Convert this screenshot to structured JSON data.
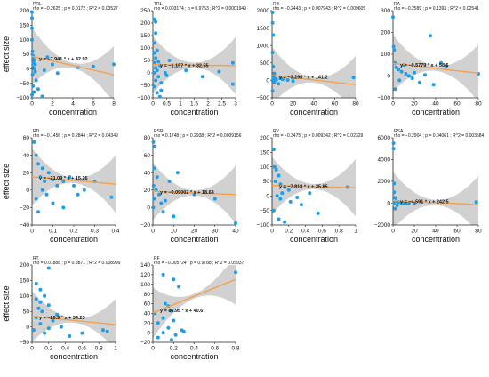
{
  "chart_data": [
    {
      "type": "scatter",
      "title": "PRL",
      "subtitle": "rho = −0.2625 ; p = 0.0172 ; R^2 = 0.03527",
      "xlabel": "concentration",
      "ylabel": "effect size",
      "xlim": [
        0,
        8
      ],
      "ylim": [
        -100,
        200
      ],
      "xticks": [
        "0",
        "2",
        "4",
        "6",
        "8"
      ],
      "yticks": [
        "−100",
        "−50",
        "0",
        "50",
        "100",
        "150",
        "200"
      ],
      "fit": {
        "slope": -7.941,
        "intercept": 42.92,
        "label": "y = −7.941 * x + 42.92"
      },
      "points": [
        [
          0,
          195
        ],
        [
          0,
          175
        ],
        [
          0,
          140
        ],
        [
          0,
          100
        ],
        [
          0.05,
          60
        ],
        [
          0.1,
          45
        ],
        [
          0.1,
          35
        ],
        [
          0.2,
          30
        ],
        [
          0.15,
          20
        ],
        [
          0.3,
          15
        ],
        [
          0.1,
          5
        ],
        [
          0.2,
          0
        ],
        [
          0.3,
          -10
        ],
        [
          0.05,
          -20
        ],
        [
          0.4,
          -40
        ],
        [
          0.1,
          -60
        ],
        [
          0.2,
          -80
        ],
        [
          1.5,
          40
        ],
        [
          2,
          15
        ],
        [
          1.2,
          -5
        ],
        [
          0.6,
          -70
        ],
        [
          0,
          -90
        ],
        [
          1,
          -95
        ],
        [
          6,
          8
        ],
        [
          8,
          15
        ],
        [
          4.5,
          5
        ],
        [
          2.5,
          -15
        ]
      ]
    },
    {
      "type": "scatter",
      "title": "TRL",
      "subtitle": "rho = 0.003174 ; p = 0.9753 ; R^2 = 0.0001949",
      "xlabel": "concentration",
      "ylabel": "",
      "xlim": [
        0,
        3
      ],
      "ylim": [
        -100,
        250
      ],
      "xticks": [
        "0",
        "0.5",
        "1",
        "1.5",
        "2",
        "2.5",
        "3"
      ],
      "yticks": [
        "−100",
        "−50",
        "0",
        "50",
        "100",
        "150",
        "200",
        "250"
      ],
      "fit": {
        "slope": -1.157,
        "intercept": 32.55,
        "label": "y = −1.157 * x + 32.55"
      },
      "points": [
        [
          0.05,
          215
        ],
        [
          0.1,
          205
        ],
        [
          0.1,
          160
        ],
        [
          0.05,
          120
        ],
        [
          0.15,
          90
        ],
        [
          0.05,
          80
        ],
        [
          0.1,
          60
        ],
        [
          0.2,
          45
        ],
        [
          0.05,
          40
        ],
        [
          0.25,
          30
        ],
        [
          0.1,
          20
        ],
        [
          0.15,
          10
        ],
        [
          0.05,
          0
        ],
        [
          0.2,
          -15
        ],
        [
          0.1,
          -30
        ],
        [
          0.3,
          -40
        ],
        [
          0.05,
          -55
        ],
        [
          0.15,
          -80
        ],
        [
          0.25,
          -95
        ],
        [
          0.6,
          50
        ],
        [
          0.45,
          0
        ],
        [
          0.5,
          -10
        ],
        [
          1.2,
          10
        ],
        [
          1.8,
          -15
        ],
        [
          2.4,
          5
        ],
        [
          2.9,
          40
        ],
        [
          2.9,
          -45
        ],
        [
          0.3,
          -70
        ]
      ]
    },
    {
      "type": "scatter",
      "title": "RB",
      "subtitle": "rho = −0.2443 ; p = 0.007943 ; R^2 = 0.009605",
      "xlabel": "concentration",
      "ylabel": "",
      "xlim": [
        0,
        80
      ],
      "ylim": [
        -500,
        2000
      ],
      "xticks": [
        "0",
        "20",
        "40",
        "60",
        "80"
      ],
      "yticks": [
        "−500",
        "0",
        "500",
        "1000",
        "1500",
        "2000"
      ],
      "fit": {
        "slope": -3.296,
        "intercept": 141.2,
        "label": "y = −3.296 * x + 141.2"
      },
      "points": [
        [
          0.5,
          1950
        ],
        [
          0.5,
          1650
        ],
        [
          1,
          1300
        ],
        [
          0.5,
          800
        ],
        [
          1,
          400
        ],
        [
          2,
          200
        ],
        [
          1,
          100
        ],
        [
          3,
          50
        ],
        [
          0.5,
          0
        ],
        [
          4,
          20
        ],
        [
          2,
          -50
        ],
        [
          6,
          -100
        ],
        [
          10,
          30
        ],
        [
          15,
          10
        ],
        [
          20,
          -20
        ],
        [
          8,
          60
        ],
        [
          0.5,
          -300
        ],
        [
          78,
          80
        ]
      ]
    },
    {
      "type": "scatter",
      "title": "RA",
      "subtitle": "rho = −0.2589 ; p = 0.1393 ; R^2 = 0.02541",
      "xlabel": "concentration",
      "ylabel": "",
      "xlim": [
        0,
        80
      ],
      "ylim": [
        -100,
        300
      ],
      "xticks": [
        "0",
        "20",
        "40",
        "60",
        "80"
      ],
      "yticks": [
        "−100",
        "0",
        "100",
        "200",
        "300"
      ],
      "fit": {
        "slope": -0.5779,
        "intercept": 58.6,
        "label": "y = −0.5779 * x + 58.6"
      },
      "points": [
        [
          0,
          270
        ],
        [
          0.5,
          135
        ],
        [
          1,
          120
        ],
        [
          2,
          60
        ],
        [
          3,
          40
        ],
        [
          5,
          30
        ],
        [
          8,
          20
        ],
        [
          10,
          50
        ],
        [
          12,
          10
        ],
        [
          15,
          0
        ],
        [
          18,
          -10
        ],
        [
          20,
          15
        ],
        [
          25,
          -30
        ],
        [
          30,
          5
        ],
        [
          35,
          185
        ],
        [
          38,
          -40
        ],
        [
          45,
          60
        ],
        [
          50,
          45
        ],
        [
          6,
          -20
        ],
        [
          2,
          -60
        ],
        [
          80,
          10
        ]
      ]
    },
    {
      "type": "scatter",
      "title": "RD",
      "subtitle": "rho = −0.1456 ; p = 0.2844 ; R^2 = 0.04349",
      "xlabel": "concentration",
      "ylabel": "effect size",
      "xlim": [
        0,
        0.4
      ],
      "ylim": [
        -40,
        60
      ],
      "xticks": [
        "0",
        "0.1",
        "0.2",
        "0.3",
        "0.4"
      ],
      "yticks": [
        "−40",
        "−20",
        "0",
        "20",
        "40",
        "60"
      ],
      "fit": {
        "slope": -21.09,
        "intercept": 15.26,
        "label": "y = −21.09 * x + 15.26"
      },
      "points": [
        [
          0.01,
          55
        ],
        [
          0.02,
          40
        ],
        [
          0.03,
          30
        ],
        [
          0.05,
          25
        ],
        [
          0.04,
          15
        ],
        [
          0.06,
          10
        ],
        [
          0.08,
          20
        ],
        [
          0.1,
          12
        ],
        [
          0.12,
          5
        ],
        [
          0.05,
          0
        ],
        [
          0.07,
          -5
        ],
        [
          0.15,
          10
        ],
        [
          0.18,
          15
        ],
        [
          0.2,
          5
        ],
        [
          0.22,
          -5
        ],
        [
          0.02,
          -10
        ],
        [
          0.1,
          -15
        ],
        [
          0.25,
          0
        ],
        [
          0.3,
          10
        ],
        [
          0.38,
          -8
        ],
        [
          0.03,
          -25
        ],
        [
          0.15,
          -20
        ]
      ]
    },
    {
      "type": "scatter",
      "title": "RSR",
      "subtitle": "rho = 0.1748 ; p = 0.2938 ; R^2 = 0.0009156",
      "xlabel": "concentration",
      "ylabel": "",
      "xlim": [
        0,
        40
      ],
      "ylim": [
        -20,
        80
      ],
      "xticks": [
        "0",
        "10",
        "20",
        "30",
        "40"
      ],
      "yticks": [
        "−20",
        "0",
        "20",
        "40",
        "60",
        "80"
      ],
      "fit": {
        "slope": -0.09002,
        "intercept": 18.63,
        "label": "y = −0.09002 * x + 18.63"
      },
      "points": [
        [
          0.2,
          75
        ],
        [
          1,
          70
        ],
        [
          0.5,
          45
        ],
        [
          2,
          35
        ],
        [
          0.3,
          25
        ],
        [
          1.5,
          20
        ],
        [
          3,
          15
        ],
        [
          0.5,
          10
        ],
        [
          4,
          5
        ],
        [
          6,
          8
        ],
        [
          8,
          30
        ],
        [
          12,
          40
        ],
        [
          0.2,
          0
        ],
        [
          5,
          -5
        ],
        [
          10,
          -10
        ],
        [
          40,
          -18
        ],
        [
          20,
          15
        ],
        [
          30,
          10
        ]
      ]
    },
    {
      "type": "scatter",
      "title": "RV",
      "subtitle": "rho = −0.3475 ; p = 0.009342 ; R^2 = 0.02329",
      "xlabel": "concentration",
      "ylabel": "",
      "xlim": [
        0,
        1
      ],
      "ylim": [
        -100,
        200
      ],
      "xticks": [
        "0",
        "0.2",
        "0.4",
        "0.6",
        "0.8",
        "1"
      ],
      "yticks": [
        "−100",
        "−50",
        "0",
        "50",
        "100",
        "150",
        "200"
      ],
      "fit": {
        "slope": -7.818,
        "intercept": 35.85,
        "label": "y = −7.818 * x + 35.85"
      },
      "points": [
        [
          0.02,
          160
        ],
        [
          0.03,
          100
        ],
        [
          0.05,
          90
        ],
        [
          0.08,
          70
        ],
        [
          0.04,
          50
        ],
        [
          0.1,
          40
        ],
        [
          0.15,
          30
        ],
        [
          0.2,
          20
        ],
        [
          0.12,
          10
        ],
        [
          0.06,
          0
        ],
        [
          0.1,
          -10
        ],
        [
          0.22,
          -20
        ],
        [
          0.3,
          -5
        ],
        [
          0.35,
          -30
        ],
        [
          0.02,
          -50
        ],
        [
          0.08,
          -80
        ],
        [
          0.15,
          -90
        ],
        [
          0.45,
          10
        ],
        [
          0.55,
          -60
        ],
        [
          0.9,
          30
        ]
      ]
    },
    {
      "type": "scatter",
      "title": "RSA",
      "subtitle": "rho = −0.2904 ; p = 0.04061 ; R^2 = 0.003584",
      "xlabel": "concentration",
      "ylabel": "",
      "xlim": [
        0,
        80
      ],
      "ylim": [
        -2000,
        6000
      ],
      "xticks": [
        "0",
        "20",
        "40",
        "60",
        "80"
      ],
      "yticks": [
        "−2000",
        "0",
        "2000",
        "4000",
        "6000"
      ],
      "fit": {
        "slope": -4.591,
        "intercept": 242.5,
        "label": "y = −4.591 * x + 242.5"
      },
      "points": [
        [
          0.5,
          5500
        ],
        [
          0.5,
          5000
        ],
        [
          1,
          1800
        ],
        [
          1,
          1000
        ],
        [
          2,
          500
        ],
        [
          3,
          200
        ],
        [
          5,
          100
        ],
        [
          8,
          50
        ],
        [
          1,
          0
        ],
        [
          4,
          -200
        ],
        [
          10,
          30
        ],
        [
          12,
          -50
        ],
        [
          15,
          20
        ],
        [
          20,
          10
        ],
        [
          78,
          100
        ],
        [
          2,
          -500
        ]
      ]
    },
    {
      "type": "scatter",
      "title": "RT",
      "subtitle": "rho = 0.01888 ; p = 0.8871 ; R^2 = 0.008999",
      "xlabel": "concentration",
      "ylabel": "effect size",
      "xlim": [
        0,
        1
      ],
      "ylim": [
        -50,
        200
      ],
      "xticks": [
        "0",
        "0.2",
        "0.4",
        "0.6",
        "0.8",
        "1"
      ],
      "yticks": [
        "−50",
        "0",
        "50",
        "100",
        "150",
        "200"
      ],
      "fit": {
        "slope": -26.9,
        "intercept": 34.23,
        "label": "y = −26.9 * x + 34.23"
      },
      "points": [
        [
          0.2,
          190
        ],
        [
          0.05,
          140
        ],
        [
          0.1,
          120
        ],
        [
          0.15,
          100
        ],
        [
          0.05,
          90
        ],
        [
          0.1,
          80
        ],
        [
          0.2,
          70
        ],
        [
          0.08,
          60
        ],
        [
          0.12,
          50
        ],
        [
          0.3,
          40
        ],
        [
          0.05,
          30
        ],
        [
          0.25,
          20
        ],
        [
          0.1,
          10
        ],
        [
          0.35,
          0
        ],
        [
          0.02,
          -10
        ],
        [
          0.15,
          -20
        ],
        [
          0.45,
          -30
        ],
        [
          0.6,
          -20
        ],
        [
          0.85,
          -10
        ],
        [
          0.9,
          -15
        ],
        [
          0.2,
          -5
        ]
      ]
    },
    {
      "type": "scatter",
      "title": "RF",
      "subtitle": "rho = −0.005724 ; p = 0.9788 ; R^2 = 0.05937",
      "xlabel": "concentration",
      "ylabel": "",
      "xlim": [
        0,
        0.8
      ],
      "ylim": [
        -20,
        140
      ],
      "xticks": [
        "0",
        "0.2",
        "0.4",
        "0.6",
        "0.8"
      ],
      "yticks": [
        "−20",
        "0",
        "20",
        "40",
        "60",
        "80",
        "100",
        "120",
        "140"
      ],
      "fit": {
        "slope": 86.95,
        "intercept": 40.6,
        "label": "y = 86.95 * x + 40.6"
      },
      "points": [
        [
          0.1,
          120
        ],
        [
          0.2,
          110
        ],
        [
          0.25,
          95
        ],
        [
          0.12,
          60
        ],
        [
          0.15,
          55
        ],
        [
          0.18,
          45
        ],
        [
          0.02,
          40
        ],
        [
          0.1,
          30
        ],
        [
          0.2,
          25
        ],
        [
          0.05,
          20
        ],
        [
          0.15,
          10
        ],
        [
          0.28,
          5
        ],
        [
          0.1,
          0
        ],
        [
          0.22,
          -5
        ],
        [
          0.05,
          -10
        ],
        [
          0.18,
          -15
        ],
        [
          0.3,
          2
        ],
        [
          0.8,
          125
        ]
      ]
    }
  ]
}
